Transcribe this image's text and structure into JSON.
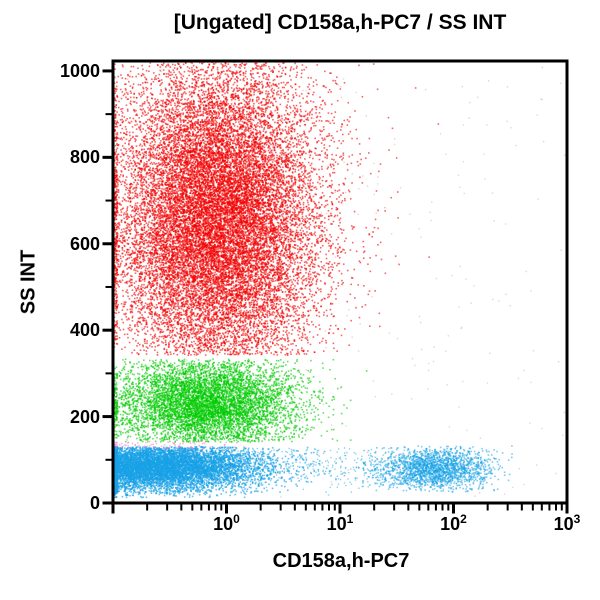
{
  "chart_data": {
    "type": "scatter",
    "title": "[Ungated] CD158a,h-PC7 / SS INT",
    "xlabel": "CD158a,h-PC7",
    "ylabel": "SS INT",
    "x_scale": "log",
    "x_range_log10": [
      -1,
      3
    ],
    "ylim": [
      0,
      1023
    ],
    "grid": false,
    "legend": "none",
    "background": "#ffffff",
    "axis_color": "#000000",
    "x_ticks": [
      {
        "base": "10",
        "exp": "0",
        "log10": 0
      },
      {
        "base": "10",
        "exp": "1",
        "log10": 1
      },
      {
        "base": "10",
        "exp": "2",
        "log10": 2
      },
      {
        "base": "10",
        "exp": "3",
        "log10": 3
      }
    ],
    "y_ticks": [
      {
        "label": "1000",
        "value": 1000
      },
      {
        "label": "800",
        "value": 800
      },
      {
        "label": "600",
        "value": 600
      },
      {
        "label": "400",
        "value": 400
      },
      {
        "label": "200",
        "value": 200
      },
      {
        "label": "0",
        "value": 0
      }
    ],
    "y_minor_tick_step": 100,
    "populations": [
      {
        "name": "top-pileup-events",
        "color": "#d8a8a8",
        "n": 280,
        "alpha": 0.55,
        "size": 1.4,
        "x": {
          "dist": "uniform",
          "min": -1,
          "max": 3
        },
        "y": {
          "dist": "fixed",
          "value": 1023
        }
      },
      {
        "name": "stray-events-gray",
        "color": "#c09898",
        "n": 150,
        "alpha": 0.4,
        "size": 1.4,
        "x": {
          "dist": "uniform",
          "min": -1,
          "max": 3
        },
        "y": {
          "dist": "uniform",
          "min": 5,
          "max": 1010
        }
      },
      {
        "name": "stray-events-red",
        "color": "#e87878",
        "n": 110,
        "alpha": 0.4,
        "size": 1.4,
        "x": {
          "dist": "uniform",
          "min": -1,
          "max": 3
        },
        "y": {
          "dist": "uniform",
          "min": 5,
          "max": 1010
        }
      },
      {
        "name": "ss-high-red-population",
        "color": "#f20000",
        "n": 21000,
        "alpha": 0.6,
        "size": 1.6,
        "x": {
          "dist": "normal",
          "mean": -0.08,
          "sd": 0.45,
          "clamp_left": true
        },
        "y": {
          "dist": "normal",
          "mean": 660,
          "sd": 185,
          "min": 342,
          "max": 1023,
          "pile_max": true
        }
      },
      {
        "name": "ss-mid-green-population",
        "color": "#00cc00",
        "n": 6800,
        "alpha": 0.6,
        "size": 1.6,
        "x": {
          "dist": "normal",
          "mean": -0.17,
          "sd": 0.4,
          "clamp_left": true
        },
        "y": {
          "dist": "normal",
          "mean": 230,
          "sd": 54,
          "min": 141,
          "max": 333
        }
      },
      {
        "name": "ss-low-blue-band",
        "color": "#18a2e6",
        "n": 9800,
        "alpha": 0.65,
        "size": 1.6,
        "x": {
          "dist": "normal",
          "mean": -0.68,
          "sd": 0.48,
          "clamp_left": true
        },
        "y": {
          "dist": "normal",
          "mean": 84,
          "sd": 28,
          "min": 12,
          "max": 130
        }
      },
      {
        "name": "ss-low-blue-tail",
        "color": "#18a2e6",
        "n": 750,
        "alpha": 0.5,
        "size": 1.4,
        "x": {
          "dist": "uniform",
          "min": -0.3,
          "max": 2.1
        },
        "y": {
          "dist": "normal",
          "mean": 84,
          "sd": 30,
          "min": 18,
          "max": 128
        }
      },
      {
        "name": "cd158-positive-blue-cluster",
        "color": "#18a2e6",
        "n": 1900,
        "alpha": 0.55,
        "size": 1.6,
        "x": {
          "dist": "normal",
          "mean": 1.85,
          "sd": 0.27,
          "min": 1.2,
          "max": 2.52
        },
        "y": {
          "dist": "normal",
          "mean": 80,
          "sd": 25,
          "min": 25,
          "max": 132
        }
      },
      {
        "name": "boundary-pink-events",
        "color": "#f07fc8",
        "n": 90,
        "alpha": 0.55,
        "size": 1.6,
        "x": {
          "dist": "normal",
          "mean": -0.5,
          "sd": 0.38,
          "clamp_left": true
        },
        "y": {
          "dist": "normal",
          "mean": 134,
          "sd": 5,
          "min": 122,
          "max": 146
        }
      }
    ]
  }
}
